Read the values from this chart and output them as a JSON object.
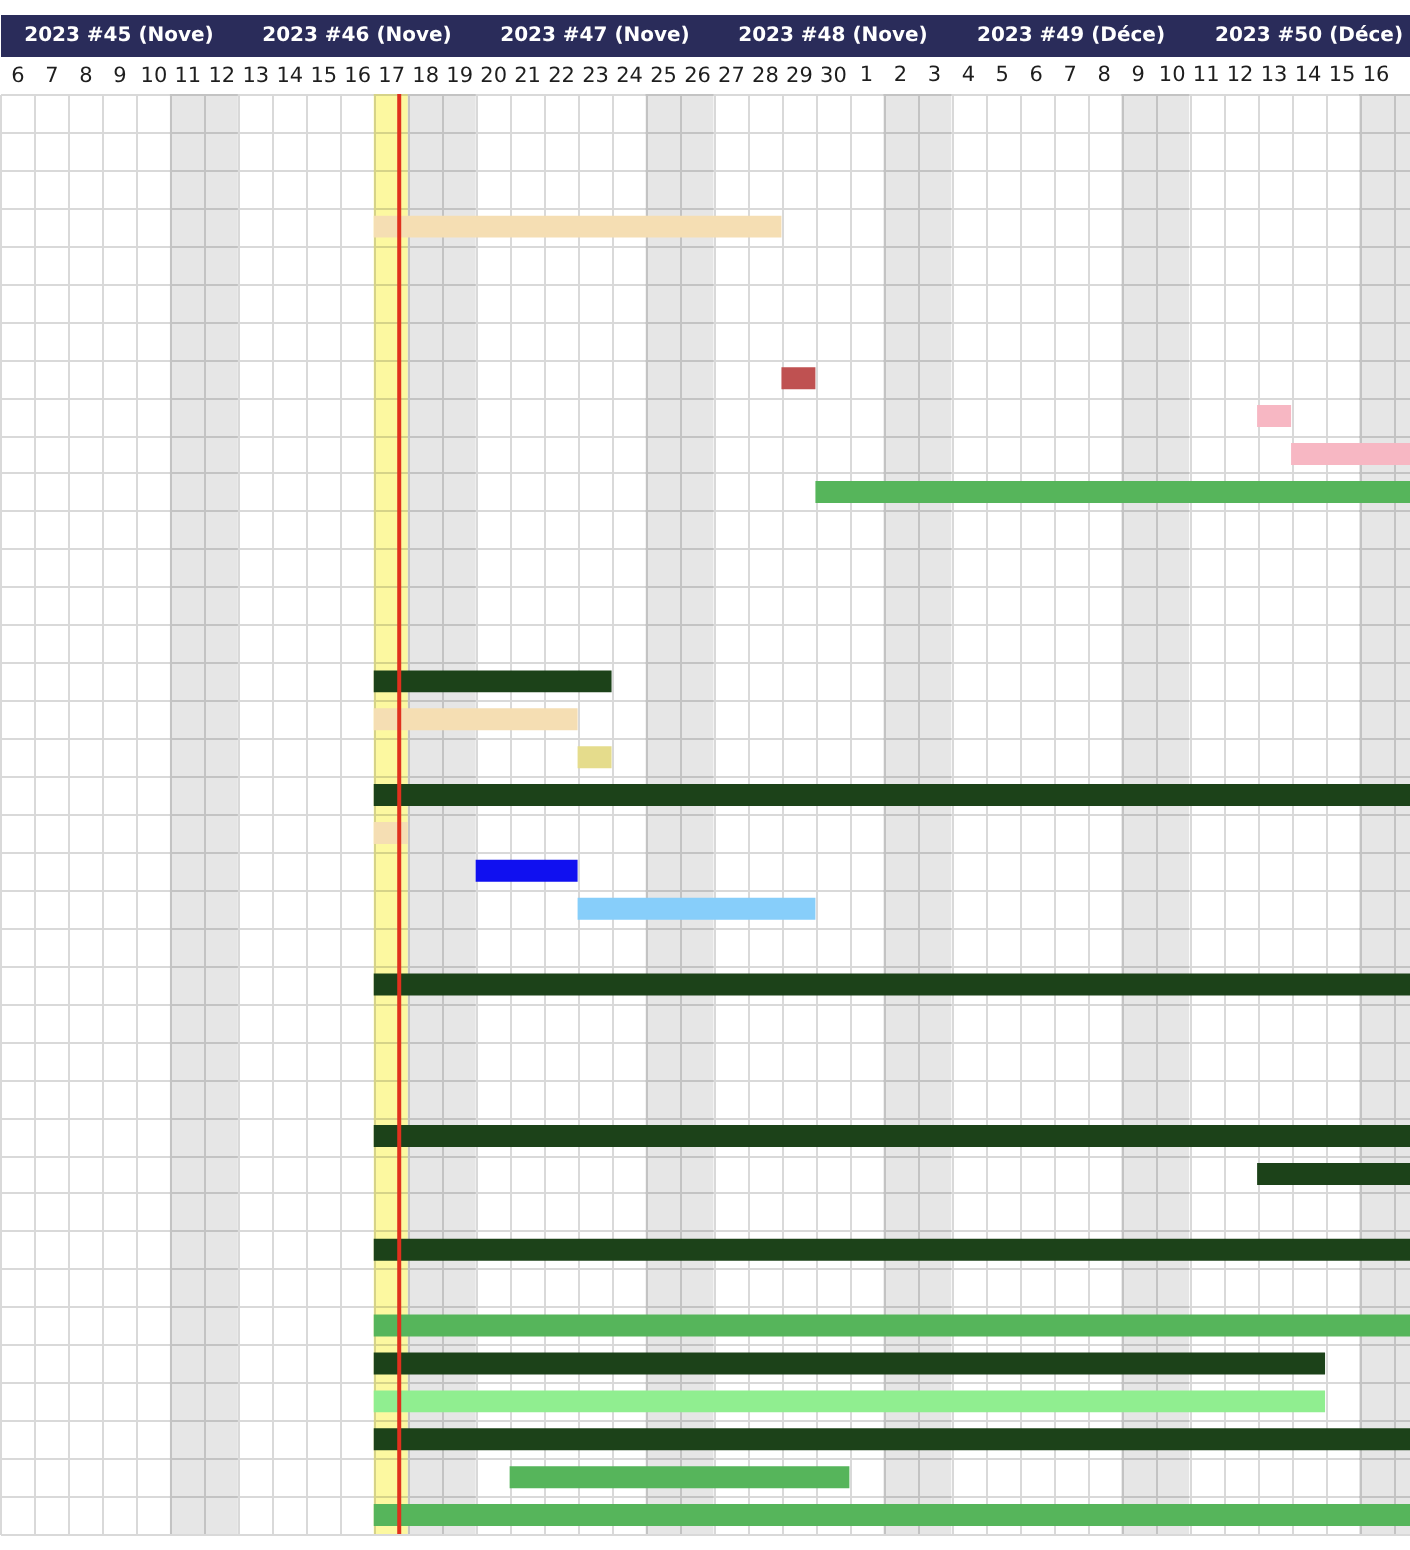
{
  "chart_data": {
    "type": "bar",
    "orientation": "horizontal",
    "categories": [
      null,
      null,
      null,
      null,
      null,
      null,
      null,
      null,
      null,
      null,
      null,
      null,
      null,
      null,
      null,
      null,
      null,
      null,
      null,
      null,
      null,
      null,
      null,
      null,
      null,
      null,
      null,
      null,
      null,
      null,
      null,
      null,
      null,
      null,
      null,
      null,
      null,
      null
    ],
    "values": [
      null,
      null,
      null,
      12,
      null,
      null,
      null,
      1,
      1,
      3.5,
      17.5,
      null,
      null,
      null,
      null,
      7,
      6,
      1,
      30.5,
      1,
      3,
      7,
      null,
      30.5,
      null,
      null,
      null,
      30.5,
      4.5,
      null,
      30.5,
      null,
      30.5,
      28,
      28,
      30.5,
      10,
      30.5
    ],
    "base": [
      null,
      null,
      null,
      16.5,
      null,
      null,
      null,
      28.5,
      42.5,
      43.5,
      29.5,
      null,
      null,
      null,
      null,
      16.5,
      16.5,
      22.5,
      16.5,
      16.5,
      19.5,
      22.5,
      null,
      16.5,
      null,
      null,
      null,
      16.5,
      42.5,
      null,
      16.5,
      null,
      16.5,
      16.5,
      16.5,
      16.5,
      20.5,
      16.5
    ],
    "colors": [
      null,
      null,
      null,
      "#f5deb3",
      null,
      null,
      null,
      "#bf5151",
      "#f7b7c3",
      "#f7b7c3",
      "#56b55b",
      null,
      null,
      null,
      null,
      "#1c4219",
      "#f5deb3",
      "#e5dc8c",
      "#1c4219",
      "#f5deb3",
      "#1010f0",
      "#87cefa",
      null,
      "#1c4219",
      null,
      null,
      null,
      "#1c4219",
      "#1c4219",
      null,
      "#1c4219",
      null,
      "#56b55b",
      "#1c4219",
      "#90ee90",
      "#1c4219",
      "#56b55b",
      "#56b55b"
    ],
    "xlim": [
      5.5,
      47
    ],
    "xticks": [
      6,
      7,
      8,
      9,
      10,
      11,
      12,
      13,
      14,
      15,
      16,
      17,
      18,
      19,
      20,
      21,
      22,
      23,
      24,
      25,
      26,
      27,
      28,
      29,
      30
    ],
    "x2lim": [
      -24.5,
      17
    ],
    "x2ticks": [
      1,
      2,
      3,
      4,
      5,
      6,
      7,
      8,
      9,
      10,
      11,
      12,
      13,
      14,
      15,
      16
    ],
    "annotations": [
      "2023 #45 (Nove)",
      "2023 #46 (Nove)",
      "2023 #47 (Nove)",
      "2023 #48 (Nove)",
      "2023 #49 (Déce)",
      "2023 #50 (Déce)"
    ],
    "bands": [
      {
        "axis": "x",
        "from": 10.5,
        "to": 12.5,
        "color": "#e6e6e6"
      },
      {
        "axis": "x",
        "from": 16.5,
        "to": 17.5,
        "color": "#fcf8a0"
      },
      {
        "axis": "x",
        "from": 17.5,
        "to": 19.5,
        "color": "#e6e6e6"
      },
      {
        "axis": "x",
        "from": 24.5,
        "to": 26.5,
        "color": "#e6e6e6"
      },
      {
        "axis": "x",
        "from": 31.5,
        "to": 33.5,
        "color": "#e6e6e6"
      },
      {
        "axis": "x",
        "from": 38.5,
        "to": 40.5,
        "color": "#e6e6e6"
      },
      {
        "axis": "x",
        "from": 45.5,
        "to": 47,
        "color": "#e6e6e6"
      }
    ],
    "ref_lines": [
      {
        "axis": "x",
        "value": 17.25,
        "color": "#e0301e"
      }
    ],
    "grid": true,
    "tick_labels": "x"
  }
}
